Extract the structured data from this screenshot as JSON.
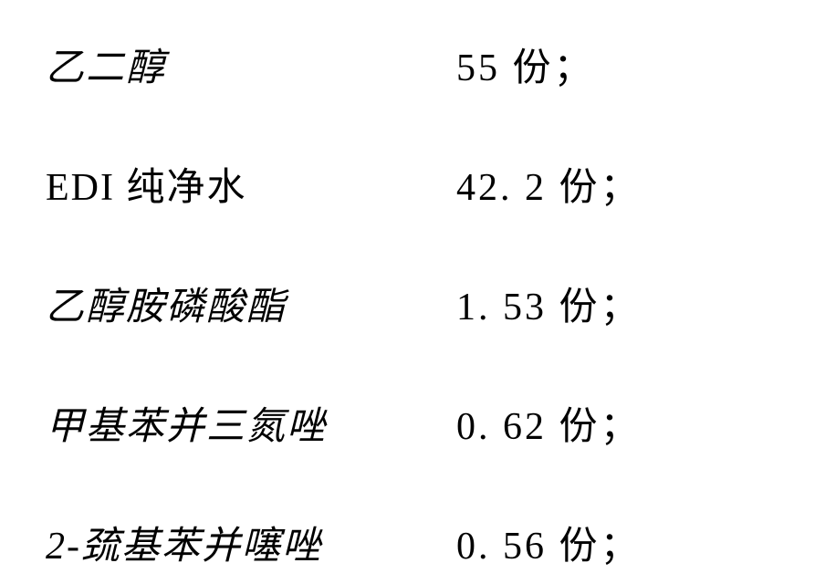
{
  "items": [
    {
      "label": "乙二醇",
      "value": "55 份；",
      "style": "kai"
    },
    {
      "label": "EDI 纯净水",
      "value": "42. 2 份；",
      "style": "normal"
    },
    {
      "label": "乙醇胺磷酸酯",
      "value": "1. 53 份；",
      "style": "kai"
    },
    {
      "label": "甲基苯并三氮唑",
      "value": "0. 62 份；",
      "style": "kai"
    },
    {
      "label": "2-巯基苯并噻唑",
      "value": "0. 56 份；",
      "style": "kai"
    }
  ],
  "fontsize": 42,
  "text_color": "#000000",
  "background_color": "#ffffff"
}
